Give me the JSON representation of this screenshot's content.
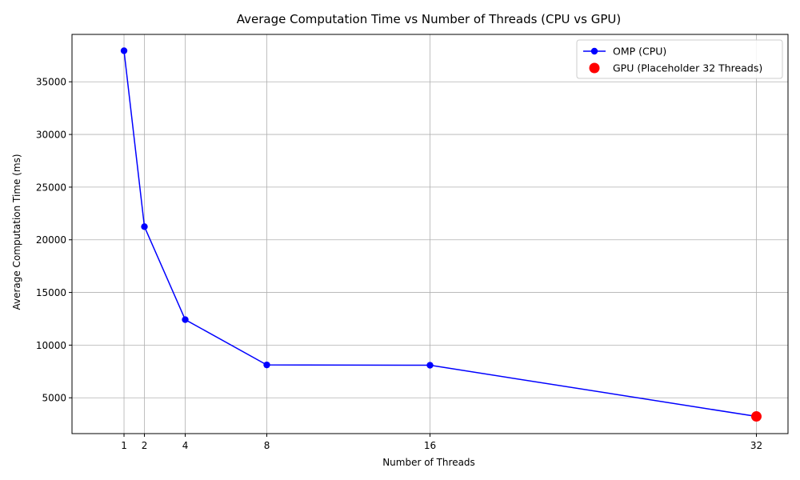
{
  "chart_data": {
    "type": "line",
    "title": "Average Computation Time vs Number of Threads (CPU vs GPU)",
    "xlabel": "Number of Threads",
    "ylabel": "Average Computation Time (ms)",
    "xlim": [
      -1.55,
      33.55
    ],
    "ylim": [
      1600,
      39500
    ],
    "xticks": [
      1,
      2,
      4,
      8,
      16,
      32
    ],
    "yticks": [
      5000,
      10000,
      15000,
      20000,
      25000,
      30000,
      35000
    ],
    "grid": true,
    "legend_position": "top-right",
    "series": [
      {
        "name": "OMP (CPU)",
        "kind": "line-marker",
        "color": "#0000ff",
        "x": [
          1,
          2,
          4,
          8,
          16,
          32
        ],
        "y": [
          37950,
          21250,
          12420,
          8120,
          8090,
          3230
        ]
      },
      {
        "name": "GPU (Placeholder 32 Threads)",
        "kind": "marker",
        "color": "#ff0000",
        "x": [
          32
        ],
        "y": [
          3230
        ]
      }
    ]
  }
}
